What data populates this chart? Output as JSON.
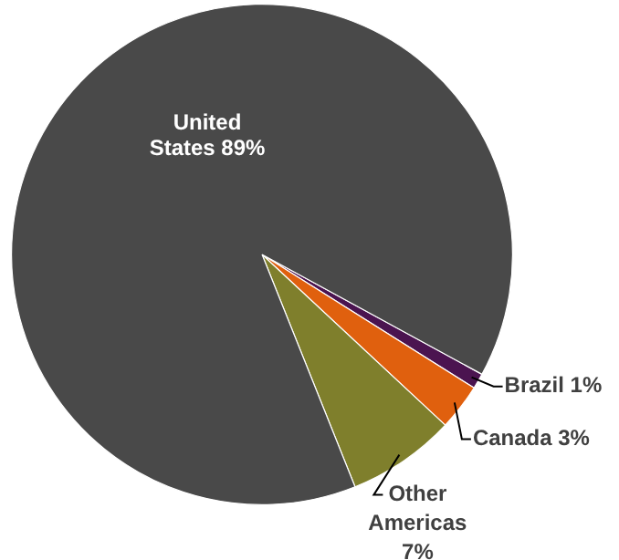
{
  "chart_data": {
    "type": "pie",
    "categories": [
      "Brazil",
      "Canada",
      "Other Americas",
      "United States"
    ],
    "values": [
      1,
      3,
      7,
      89
    ],
    "colors": [
      "#4b1450",
      "#e0600e",
      "#7f7f2c",
      "#494949"
    ],
    "value_labels": [
      "1%",
      "3%",
      "7%",
      "89%"
    ]
  }
}
